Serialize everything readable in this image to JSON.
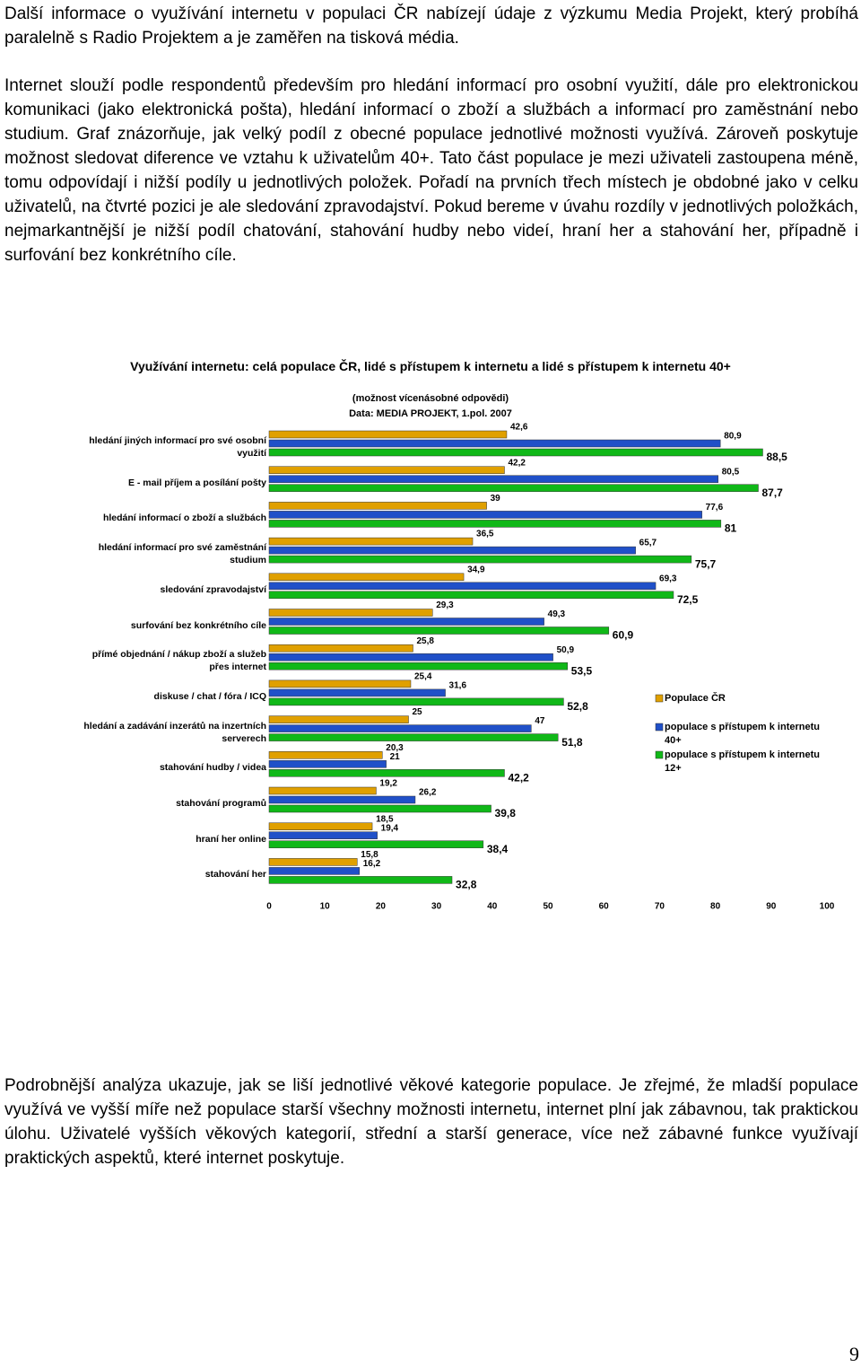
{
  "paragraphs": [
    "Další informace o využívání internetu v populaci ČR nabízejí údaje z výzkumu Media Projekt, který probíhá paralelně s Radio Projektem a je zaměřen na tisková média.",
    "Internet slouží podle respondentů především pro hledání informací pro osobní využití, dále pro elektronickou komunikaci (jako elektronická pošta), hledání informací o zboží a službách a informací pro zaměstnání nebo studium. Graf znázorňuje, jak velký podíl z obecné populace jednotlivé možnosti využívá. Zároveň poskytuje možnost sledovat diference ve vztahu k uživatelům 40+. Tato část populace je mezi uživateli zastoupena méně, tomu odpovídají i nižší podíly u jednotlivých položek. Pořadí na prvních třech místech je obdobné jako v celku uživatelů, na čtvrté pozici je ale sledování zpravodajství. Pokud bereme v úvahu rozdíly v jednotlivých položkách, nejmarkantnější je nižší podíl chatování, stahování hudby nebo videí, hraní her a stahování her, případně i surfování bez konkrétního cíle.",
    "Podrobnější analýza ukazuje, jak se liší jednotlivé věkové kategorie populace. Je zřejmé, že mladší populace využívá ve vyšší míře než populace starší všechny možnosti internetu, internet plní jak zábavnou, tak praktickou úlohu. Uživatelé vyšších věkových kategorií, střední a starší generace, více než zábavné funkce využívají praktických aspektů, které internet poskytuje."
  ],
  "page_number": "9",
  "chart_data": {
    "type": "hbar",
    "title": "Využívání internetu: celá populace ČR, lidé s přístupem k internetu a lidé s přístupem k internetu 40+",
    "subtitle": "(možnost vícenásobné odpovědi)",
    "source": "Data: MEDIA PROJEKT, 1.pol. 2007",
    "categories": [
      "hledání jiných informací pro své osobní využití",
      "E - mail příjem a posílání pošty",
      "hledání informací o zboží a službách",
      "hledání informací pro své zaměstnání studium",
      "sledování zpravodajství",
      "surfování bez konkrétního cíle",
      "přímé objednání / nákup zboží a služeb přes internet",
      "diskuse / chat / fóra / ICQ",
      "hledání a zadávání inzerátů na inzertních serverech",
      "stahování hudby / videa",
      "stahování programů",
      "hraní her online",
      "stahování her"
    ],
    "series": [
      {
        "name": "Populace ČR",
        "color": "#e0a000",
        "values": [
          42.6,
          42.2,
          39,
          36.5,
          34.9,
          29.3,
          25.8,
          25.4,
          25,
          20.3,
          19.2,
          18.5,
          15.8
        ],
        "value_labels": [
          "42,6",
          "42,2",
          "39",
          "36,5",
          "34,9",
          "29,3",
          "25,8",
          "25,4",
          "25",
          "20,3",
          "19,2",
          "18,5",
          "15,8"
        ]
      },
      {
        "name": "populace s přístupem k internetu 40+",
        "color": "#2050c8",
        "values": [
          80.9,
          80.5,
          77.6,
          65.7,
          69.3,
          49.3,
          50.9,
          31.6,
          47,
          21,
          26.2,
          19.4,
          16.2
        ],
        "value_labels": [
          "80,9",
          "80,5",
          "77,6",
          "65,7",
          "69,3",
          "49,3",
          "50,9",
          "31,6",
          "47",
          "21",
          "26,2",
          "19,4",
          "16,2"
        ]
      },
      {
        "name": "populace s přístupem k internetu 12+",
        "color": "#10b818",
        "values": [
          88.5,
          87.7,
          81,
          75.7,
          72.5,
          60.9,
          53.5,
          52.8,
          51.8,
          42.2,
          39.8,
          38.4,
          32.8
        ],
        "value_labels": [
          "88,5",
          "87,7",
          "81",
          "75,7",
          "72,5",
          "60,9",
          "53,5",
          "52,8",
          "51,8",
          "42,2",
          "39,8",
          "38,4",
          "32,8"
        ]
      }
    ],
    "xlim": [
      0,
      100
    ],
    "xticks": [
      0,
      10,
      20,
      30,
      40,
      50,
      60,
      70,
      80,
      90,
      100
    ]
  }
}
